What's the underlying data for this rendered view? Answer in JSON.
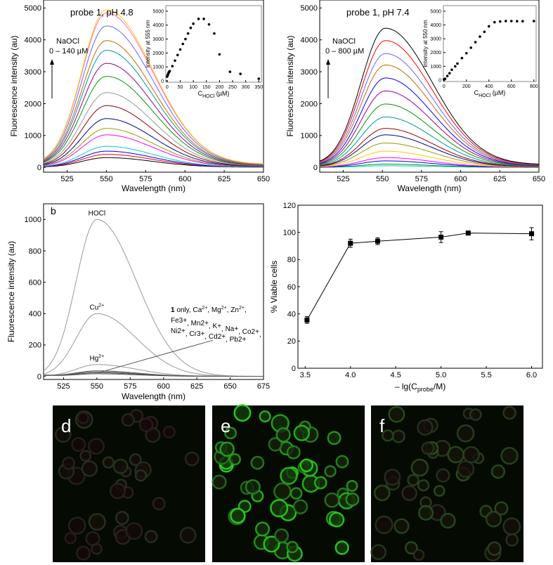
{
  "chart_data": [
    {
      "id": "a1",
      "type": "line",
      "title": "probe 1, pH 4.8",
      "annotation": "NaOCl",
      "annotation_range": "0 – 140 µM",
      "xlabel": "Wavelength (nm)",
      "ylabel": "Fluorescence intensity (au)",
      "xlim": [
        510,
        650
      ],
      "ylim": [
        -150,
        5250
      ],
      "xticks": [
        525,
        550,
        575,
        600,
        625,
        650
      ],
      "yticks": [
        0,
        1000,
        2000,
        3000,
        4000,
        5000
      ],
      "peak_nm": 550,
      "series_peaks": [
        300,
        400,
        500,
        650,
        1000,
        1200,
        1500,
        1900,
        2300,
        2800,
        3200,
        3600,
        3900,
        4350,
        4750,
        4850
      ],
      "colors": [
        "#000000",
        "#ff0000",
        "#0000ff",
        "#00cccc",
        "#ff00ff",
        "#999900",
        "#000099",
        "#990000",
        "#999999",
        "#009900",
        "#990099",
        "#009999",
        "#cc6600",
        "#6666ff",
        "#ff66cc",
        "#ffcc00"
      ],
      "inset": {
        "type": "scatter",
        "xlabel": "C",
        "xlabel_sub": "HOCl",
        "xlabel_unit": " (µM)",
        "ylabel": "Intensity at 555 nm",
        "xlim": [
          -5,
          360
        ],
        "ylim": [
          -100,
          5400
        ],
        "xticks": [
          0,
          50,
          100,
          150,
          200,
          250,
          300,
          350
        ],
        "yticks": [
          0,
          1000,
          2000,
          3000,
          4000,
          5000
        ],
        "x": [
          0,
          2,
          4,
          6,
          8,
          10,
          20,
          30,
          40,
          50,
          60,
          70,
          80,
          90,
          100,
          120,
          140,
          160,
          180,
          200,
          240,
          280,
          350
        ],
        "y": [
          300,
          400,
          500,
          600,
          650,
          700,
          1050,
          1450,
          1850,
          2250,
          2650,
          3000,
          3400,
          3800,
          4100,
          4450,
          4450,
          4050,
          3400,
          1900,
          650,
          500,
          150
        ]
      }
    },
    {
      "id": "a2",
      "type": "line",
      "title": "probe 1, pH 7.4",
      "annotation": "NaOCl",
      "annotation_range": "0 – 800 µM",
      "xlabel": "Wavelength (nm)",
      "ylabel": "Fluorescence intensity (au)",
      "xlim": [
        510,
        650
      ],
      "ylim": [
        -150,
        5250
      ],
      "xticks": [
        525,
        550,
        575,
        600,
        625,
        650
      ],
      "yticks": [
        0,
        1000,
        2000,
        3000,
        4000,
        5000
      ],
      "peak_nm": 552,
      "series_peaks": [
        50,
        100,
        200,
        300,
        500,
        750,
        1000,
        1200,
        1550,
        1950,
        2350,
        2750,
        3150,
        3500,
        3900,
        4280
      ],
      "colors": [
        "#00cccc",
        "#009900",
        "#0000ff",
        "#ff00ff",
        "#ffcc00",
        "#999900",
        "#000099",
        "#990000",
        "#009999",
        "#009900",
        "#990099",
        "#0000ff",
        "#cc6600",
        "#6666ff",
        "#ff0000",
        "#000000"
      ],
      "inset": {
        "type": "scatter",
        "xlabel": "C",
        "xlabel_sub": "HOCl",
        "xlabel_unit": " (µM)",
        "ylabel": "Intensity at 550 nm",
        "xlim": [
          -5,
          820
        ],
        "ylim": [
          -100,
          5400
        ],
        "xticks": [
          0,
          200,
          400,
          600,
          800
        ],
        "yticks": [
          0,
          1000,
          2000,
          3000,
          4000,
          5000
        ],
        "x": [
          0,
          10,
          30,
          50,
          70,
          100,
          120,
          160,
          200,
          240,
          280,
          320,
          360,
          400,
          450,
          500,
          550,
          600,
          650,
          700,
          800
        ],
        "y": [
          50,
          100,
          300,
          500,
          750,
          1000,
          1200,
          1600,
          1950,
          2350,
          2750,
          3150,
          3500,
          3900,
          4200,
          4250,
          4280,
          4280,
          4270,
          4270,
          4280
        ]
      }
    },
    {
      "id": "b",
      "type": "line",
      "panel_label": "b",
      "xlabel": "Wavelength (nm)",
      "ylabel": "Fluorescence intensity (au)",
      "xlim": [
        510,
        675
      ],
      "ylim": [
        -20,
        1100
      ],
      "xticks": [
        525,
        550,
        575,
        600,
        625,
        650,
        675
      ],
      "yticks": [
        0,
        200,
        400,
        600,
        800,
        1000
      ],
      "series": [
        {
          "name": "HOCl",
          "peak": 1000
        },
        {
          "name": "Cu",
          "sup": "2+",
          "peak": 400
        },
        {
          "name": "Hg",
          "sup": "2+",
          "peak": 75
        },
        {
          "name": "others",
          "peak": 35
        },
        {
          "name": "others",
          "peak": 28
        },
        {
          "name": "others",
          "peak": 22
        },
        {
          "name": "others",
          "peak": 16
        }
      ],
      "others_label": [
        [
          "1",
          " only, Ca",
          "2+",
          ", Mg",
          "2+",
          ", Zn",
          "2+",
          ","
        ],
        [
          "Fe",
          "3+",
          ", Mn",
          "2+",
          ", K",
          "+",
          ", Na",
          "+",
          ", Co",
          "2+",
          ","
        ],
        [
          "Ni",
          "2+",
          ", Cr",
          "3+",
          ", Cd",
          "2+",
          ", Pb",
          "2+",
          ""
        ]
      ]
    },
    {
      "id": "c",
      "type": "line",
      "xlabel_pre": "– lg(C",
      "xlabel_sub": "probe",
      "xlabel_post": "/M)",
      "ylabel": "% Viable cells",
      "xlim": [
        3.42,
        6.12
      ],
      "ylim": [
        0,
        120
      ],
      "xticks": [
        3.5,
        4.0,
        4.5,
        5.0,
        5.5,
        6.0
      ],
      "yticks": [
        0,
        20,
        40,
        60,
        80,
        100,
        120
      ],
      "x": [
        3.52,
        4.0,
        4.3,
        5.0,
        5.3,
        6.0
      ],
      "y": [
        35.5,
        92,
        93.5,
        96.5,
        99.5,
        99
      ],
      "err": [
        2.5,
        3,
        2.5,
        4,
        1.5,
        4.5
      ]
    }
  ],
  "images": [
    {
      "label": "d",
      "cells": 40,
      "brightness": 0.25
    },
    {
      "label": "e",
      "cells": 55,
      "brightness": 1
    },
    {
      "label": "f",
      "cells": 45,
      "brightness": 0.4
    }
  ]
}
